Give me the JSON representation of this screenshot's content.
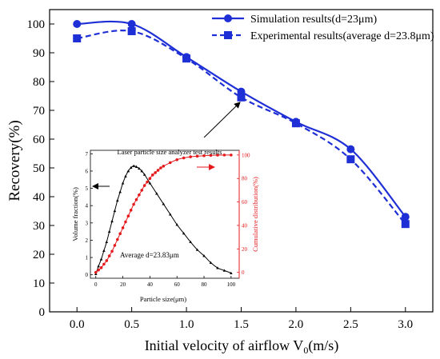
{
  "chart_data": [
    {
      "type": "line",
      "xlabel": "Initial velocity of airflow V",
      "xlabel_sub": "0",
      "xlabel_unit": "(m/s)",
      "ylabel": "Recovery(%)",
      "xlim": [
        -0.25,
        3.25
      ],
      "ylim": [
        0,
        105
      ],
      "xticks": [
        0.0,
        0.5,
        1.0,
        1.5,
        2.0,
        2.5,
        3.0
      ],
      "xtick_labels": [
        "0.0",
        "0.5",
        "1.0",
        "1.5",
        "2.0",
        "2.5",
        "3.0"
      ],
      "yticks": [
        0,
        10,
        20,
        30,
        40,
        50,
        60,
        70,
        80,
        90,
        100
      ],
      "grid": false,
      "legend_position": "top-right",
      "series": [
        {
          "name": "Simulation results(d=23μm)",
          "color": "#1f2fd6",
          "marker": "circle",
          "line": "solid",
          "x": [
            0.0,
            0.5,
            1.0,
            1.5,
            2.0,
            2.5,
            3.0
          ],
          "y": [
            100,
            100,
            88.5,
            76.5,
            66,
            56.5,
            33
          ]
        },
        {
          "name": "Experimental results(average d=23.8μm)",
          "color": "#1f2fd6",
          "marker": "square",
          "line": "dashed",
          "x": [
            0.0,
            0.5,
            1.0,
            1.5,
            2.0,
            2.5,
            3.0
          ],
          "y": [
            95,
            97.5,
            88,
            74.5,
            65.5,
            53,
            30.5
          ]
        }
      ]
    },
    {
      "type": "line",
      "title": "Laser particle size analyzer test results",
      "xlabel": "Particle size(μm)",
      "ylabel_left": "Volume fraction(%)",
      "ylabel_right": "Cumulative distribution(%)",
      "annotation": "Average d=23.83μm",
      "xlim": [
        -4,
        106
      ],
      "ylim_left": [
        -0.2,
        7.2
      ],
      "ylim_right": [
        -5,
        104
      ],
      "xticks": [
        0,
        20,
        40,
        60,
        80,
        100
      ],
      "yticks_left": [
        0,
        1,
        2,
        3,
        4,
        5,
        6,
        7
      ],
      "yticks_right": [
        0,
        20,
        40,
        60,
        80,
        100
      ],
      "series": [
        {
          "axis": "left",
          "color": "#000000",
          "marker": "triangle",
          "x": [
            0,
            2,
            4,
            6,
            8,
            10,
            12,
            14,
            16,
            18,
            20,
            22,
            24,
            26,
            28,
            30,
            32,
            34,
            36,
            40,
            45,
            50,
            55,
            60,
            65,
            70,
            75,
            80,
            85,
            90,
            95,
            100
          ],
          "y": [
            0.05,
            0.5,
            0.9,
            1.4,
            1.9,
            2.5,
            3.1,
            3.7,
            4.3,
            4.8,
            5.3,
            5.7,
            6.0,
            6.2,
            6.3,
            6.25,
            6.15,
            6.0,
            5.8,
            5.3,
            4.7,
            4.1,
            3.5,
            2.9,
            2.4,
            1.9,
            1.45,
            1.1,
            0.7,
            0.4,
            0.25,
            0.1
          ]
        },
        {
          "axis": "right",
          "color": "#e41a1c",
          "marker": "circle",
          "x": [
            0,
            2,
            4,
            6,
            8,
            10,
            12,
            14,
            16,
            18,
            20,
            22,
            24,
            26,
            28,
            30,
            32,
            34,
            36,
            38,
            40,
            42,
            44,
            46,
            48,
            50,
            55,
            60,
            65,
            70,
            75,
            80,
            85,
            90,
            95,
            100
          ],
          "y": [
            0,
            2,
            4,
            7,
            10,
            14,
            18,
            23,
            28,
            33,
            38,
            43,
            48,
            53,
            58,
            62,
            66,
            70,
            74,
            77,
            80,
            83,
            85,
            87,
            89,
            90.5,
            93.5,
            96,
            97.5,
            98.5,
            99,
            99.4,
            99.7,
            99.9,
            100,
            100
          ]
        }
      ]
    }
  ]
}
